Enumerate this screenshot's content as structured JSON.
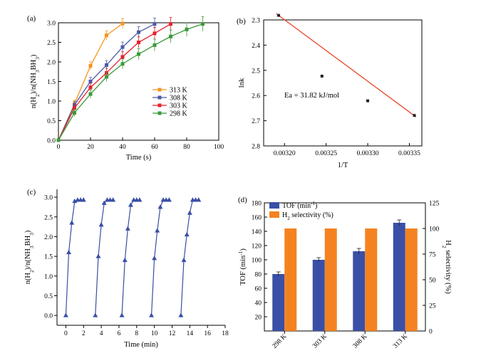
{
  "chart_data": [
    {
      "panel": "(a)",
      "type": "line",
      "xlabel": "Time (s)",
      "ylabel": "n(H2)/n(NH3BH3)",
      "xlim": [
        0,
        100
      ],
      "ylim": [
        0,
        3.0
      ],
      "xticks": [
        0,
        20,
        40,
        60,
        80,
        100
      ],
      "yticks": [
        0.0,
        0.5,
        1.0,
        1.5,
        2.0,
        2.5,
        3.0
      ],
      "legend": "center-right",
      "series": [
        {
          "name": "313 K",
          "color": "#f7941d",
          "marker": "square",
          "x": [
            0,
            10,
            20,
            30,
            40
          ],
          "y": [
            0,
            0.93,
            1.9,
            2.68,
            2.98
          ]
        },
        {
          "name": "308 K",
          "color": "#4a5aa8",
          "marker": "square",
          "x": [
            0,
            10,
            20,
            30,
            40,
            50,
            60
          ],
          "y": [
            0,
            0.9,
            1.5,
            1.92,
            2.38,
            2.76,
            2.97
          ]
        },
        {
          "name": "303 K",
          "color": "#e8202a",
          "marker": "square",
          "x": [
            0,
            10,
            20,
            30,
            40,
            50,
            60,
            70
          ],
          "y": [
            0,
            0.82,
            1.35,
            1.72,
            2.13,
            2.5,
            2.73,
            2.97
          ]
        },
        {
          "name": "298 K",
          "color": "#3a9a3a",
          "marker": "square",
          "x": [
            0,
            10,
            20,
            30,
            40,
            50,
            60,
            70,
            80,
            90
          ],
          "y": [
            0,
            0.7,
            1.18,
            1.62,
            1.95,
            2.2,
            2.43,
            2.65,
            2.83,
            2.97
          ]
        }
      ]
    },
    {
      "panel": "(b)",
      "type": "scatter",
      "xlabel": "1/T",
      "ylabel": "lnk",
      "annotation": "Ea = 31.82 kJ/mol",
      "xlim": [
        0.003175,
        0.003365
      ],
      "ylim": [
        2.3,
        2.8
      ],
      "y_inverted": true,
      "xticks": [
        "0.00320",
        "0.00325",
        "0.00330",
        "0.00335"
      ],
      "yticks": [
        "2.3",
        "2.4",
        "2.5",
        "2.6",
        "2.7",
        "2.8"
      ],
      "points": {
        "x": [
          0.003193,
          0.003245,
          0.0033,
          0.003356
        ],
        "y": [
          2.282,
          2.523,
          2.621,
          2.679
        ]
      },
      "fit_color": "#e8452a",
      "fit": {
        "x": [
          0.00319,
          0.003358
        ],
        "y": [
          2.275,
          2.685
        ]
      }
    },
    {
      "panel": "(c)",
      "type": "line",
      "xlabel": "Time (min)",
      "ylabel": "n(H2)/n(NH3BH3)",
      "xlim": [
        -1,
        18
      ],
      "ylim": [
        -0.25,
        3.2
      ],
      "xticks": [
        0,
        2,
        4,
        6,
        8,
        10,
        12,
        14,
        16,
        18
      ],
      "yticks": [
        0.0,
        0.5,
        1.0,
        1.5,
        2.0,
        2.5,
        3.0
      ],
      "color": "#3a4ea5",
      "marker": "triangle",
      "cycles": [
        {
          "x": [
            0,
            0.33,
            0.67,
            1.0,
            1.33,
            1.67,
            2.0
          ],
          "y": [
            0,
            1.6,
            2.35,
            2.9,
            2.93,
            2.93,
            2.93
          ]
        },
        {
          "x": [
            3.33,
            3.67,
            4.0,
            4.33,
            4.67,
            5.0,
            5.33
          ],
          "y": [
            0,
            1.5,
            2.3,
            2.85,
            2.93,
            2.93,
            2.93
          ]
        },
        {
          "x": [
            6.33,
            6.67,
            7.0,
            7.33,
            7.67,
            8.0,
            8.33
          ],
          "y": [
            0,
            1.4,
            2.2,
            2.8,
            2.93,
            2.93,
            2.93
          ]
        },
        {
          "x": [
            9.67,
            10.0,
            10.33,
            10.67,
            11.0,
            11.33,
            11.67
          ],
          "y": [
            0,
            1.45,
            2.15,
            2.75,
            2.93,
            2.93,
            2.93
          ]
        },
        {
          "x": [
            13.0,
            13.33,
            13.67,
            14.0,
            14.33,
            14.67,
            15.0
          ],
          "y": [
            0,
            1.4,
            2.05,
            2.6,
            2.93,
            2.93,
            2.93
          ]
        }
      ]
    },
    {
      "panel": "(d)",
      "type": "bar",
      "categories": [
        "298 K",
        "303 K",
        "308 K",
        "313 K"
      ],
      "ylabel_left": "TOF (min-1)",
      "ylabel_right": "H2 selectivity (%)",
      "ylim_left": [
        0,
        180
      ],
      "ylim_right": [
        0,
        125
      ],
      "yticks_left": [
        0,
        20,
        40,
        60,
        80,
        100,
        120,
        140,
        160,
        180
      ],
      "yticks_right": [
        0,
        25,
        50,
        75,
        100,
        125
      ],
      "legend": "top-left",
      "series": [
        {
          "name": "TOF (min-1)",
          "axis": "left",
          "color": "#3a50a6",
          "values": [
            80,
            100,
            112,
            152
          ],
          "errors": [
            3,
            3,
            4,
            4
          ]
        },
        {
          "name": "H2 selectivity (%)",
          "axis": "right",
          "color": "#f58220",
          "values": [
            100,
            100,
            100,
            100
          ]
        }
      ]
    }
  ]
}
